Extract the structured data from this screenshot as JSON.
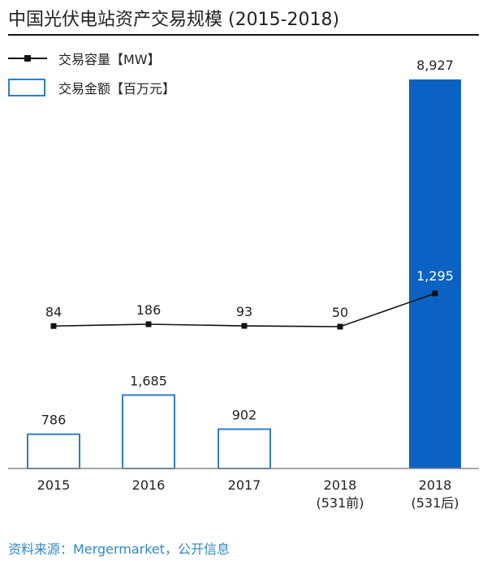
{
  "title": "中国光伏电站资产交易规模 (2015-2018)",
  "legend": {
    "line_label": "交易容量【MW】",
    "bar_label": "交易金额【百万元】"
  },
  "source": "资料来源：Mergermarket，公开信息",
  "colors": {
    "bar_outline": "#2f7fc1",
    "bar_highlight": "#0b62c2",
    "line": "#111111",
    "source_text": "#2e88c8"
  },
  "chart_data": {
    "type": "bar",
    "categories": [
      [
        "2015"
      ],
      [
        "2016"
      ],
      [
        "2017"
      ],
      [
        "2018",
        "(531前)"
      ],
      [
        "2018",
        "(531后)"
      ]
    ],
    "series": [
      {
        "name": "交易金额【百万元】",
        "type": "bar",
        "values": [
          786,
          1685,
          902,
          null,
          8927
        ],
        "labels": [
          "786",
          "1,685",
          "902",
          "",
          "8,927"
        ],
        "highlight": [
          false,
          false,
          false,
          false,
          true
        ]
      },
      {
        "name": "交易容量【MW】",
        "type": "line",
        "values": [
          84,
          186,
          93,
          50,
          1295
        ],
        "labels": [
          "84",
          "186",
          "93",
          "50",
          "1,295"
        ]
      }
    ],
    "bar_ylim": [
      0,
      8927
    ],
    "line_ylim": [
      0,
      5600
    ],
    "grid": false,
    "legend_position": "top-left"
  }
}
